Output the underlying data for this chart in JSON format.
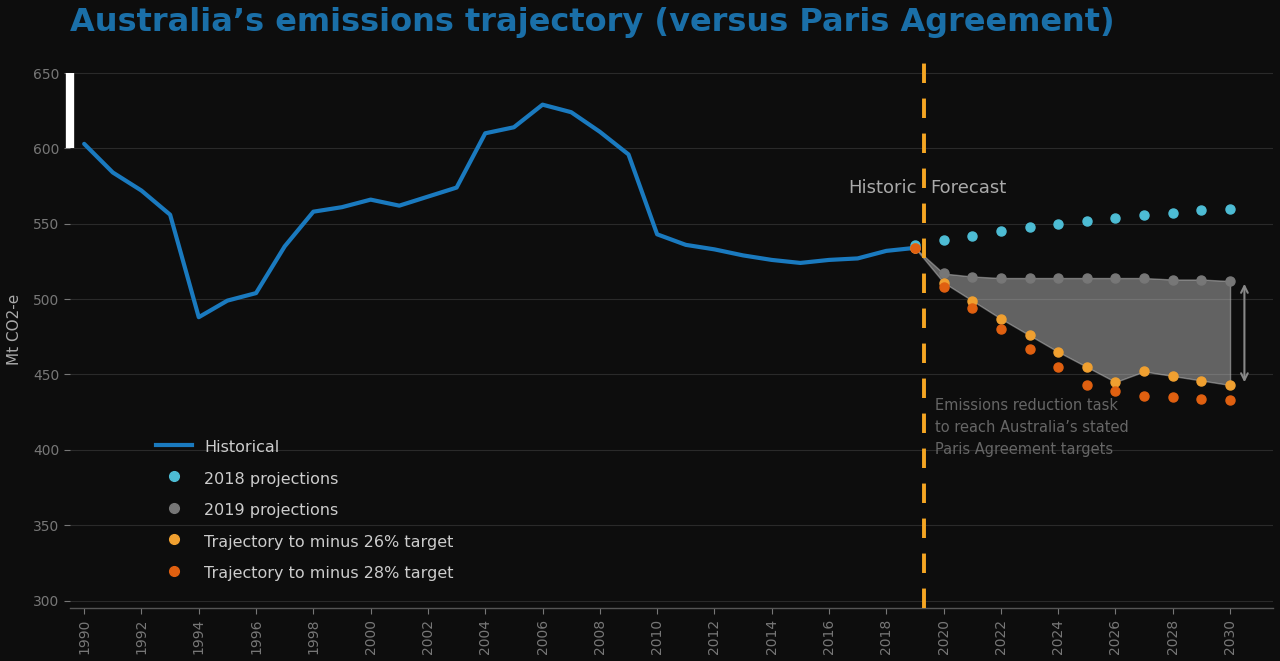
{
  "title": "Australia’s emissions trajectory (versus Paris Agreement)",
  "title_color": "#1a6fa8",
  "background_color": "#0d0d0d",
  "ylabel": "Mt CO2-e",
  "ylim": [
    295,
    665
  ],
  "xlim": [
    1989.5,
    2031.5
  ],
  "yticks": [
    300,
    350,
    400,
    450,
    500,
    550,
    600,
    650
  ],
  "xticks": [
    1990,
    1992,
    1994,
    1996,
    1998,
    2000,
    2002,
    2004,
    2006,
    2008,
    2010,
    2012,
    2014,
    2016,
    2018,
    2020,
    2022,
    2024,
    2026,
    2028,
    2030
  ],
  "historic_line_color": "#1a7abf",
  "historic_x": [
    1990,
    1991,
    1992,
    1993,
    1994,
    1995,
    1996,
    1997,
    1998,
    1999,
    2000,
    2001,
    2002,
    2003,
    2004,
    2005,
    2006,
    2007,
    2008,
    2009,
    2010,
    2011,
    2012,
    2013,
    2014,
    2015,
    2016,
    2017,
    2018,
    2019
  ],
  "historic_y": [
    603,
    584,
    572,
    556,
    488,
    499,
    504,
    535,
    558,
    561,
    566,
    562,
    568,
    574,
    610,
    614,
    629,
    624,
    611,
    596,
    543,
    536,
    533,
    529,
    526,
    524,
    526,
    527,
    532,
    534
  ],
  "proj2018_x": [
    2019,
    2020,
    2021,
    2022,
    2023,
    2024,
    2025,
    2026,
    2027,
    2028,
    2029,
    2030
  ],
  "proj2018_y": [
    536,
    539,
    542,
    545,
    548,
    550,
    552,
    554,
    556,
    557,
    559,
    560
  ],
  "proj2018_color": "#4dbcd4",
  "proj2019_x": [
    2019,
    2020,
    2021,
    2022,
    2023,
    2024,
    2025,
    2026,
    2027,
    2028,
    2029,
    2030
  ],
  "proj2019_y": [
    534,
    517,
    515,
    514,
    514,
    514,
    514,
    514,
    514,
    513,
    513,
    512
  ],
  "proj2019_color": "#777777",
  "traj26_x": [
    2019,
    2020,
    2021,
    2022,
    2023,
    2024,
    2025,
    2026,
    2027,
    2028,
    2029,
    2030
  ],
  "traj26_y": [
    534,
    511,
    499,
    487,
    476,
    465,
    455,
    445,
    452,
    449,
    446,
    443
  ],
  "traj26_color": "#f0a030",
  "traj28_x": [
    2019,
    2020,
    2021,
    2022,
    2023,
    2024,
    2025,
    2026,
    2027,
    2028,
    2029,
    2030
  ],
  "traj28_y": [
    534,
    508,
    494,
    480,
    467,
    455,
    443,
    439,
    436,
    435,
    434,
    433
  ],
  "traj28_color": "#e06010",
  "vline_x": 2019.3,
  "vline_color": "#f5a623",
  "hist_label": "Historic",
  "forecast_label": "Forecast",
  "annotation_text": "Emissions reduction task\nto reach Australia’s stated\nParis Agreement targets",
  "annotation_color": "#666666",
  "fill_between_color": "#cccccc",
  "legend_items": [
    {
      "label": "Historical",
      "color": "#1a7abf",
      "type": "line"
    },
    {
      "label": "2018 projections",
      "color": "#4dbcd4",
      "type": "dot"
    },
    {
      "label": "2019 projections",
      "color": "#777777",
      "type": "dot"
    },
    {
      "label": "Trajectory to minus 26% target",
      "color": "#f0a030",
      "type": "dot"
    },
    {
      "label": "Trajectory to minus 28% target",
      "color": "#e06010",
      "type": "dot"
    }
  ]
}
